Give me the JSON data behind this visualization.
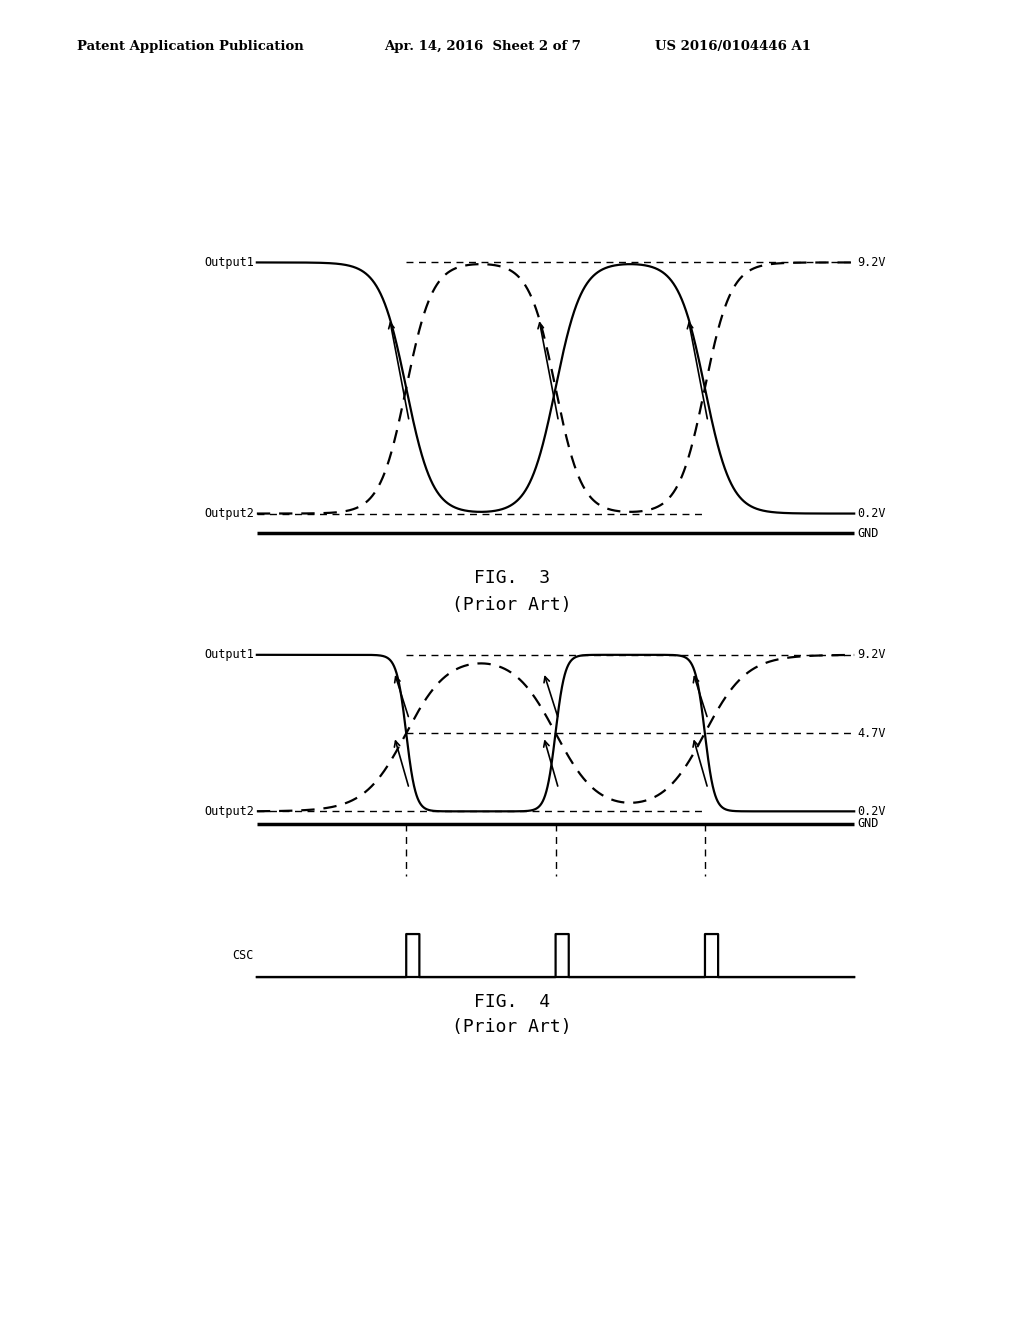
{
  "header_left": "Patent Application Publication",
  "header_mid": "Apr. 14, 2016  Sheet 2 of 7",
  "header_right": "US 2016/0104446 A1",
  "fig3_title": "FIG.  3",
  "fig3_subtitle": "(Prior Art)",
  "fig4_title": "FIG.  4",
  "fig4_subtitle": "(Prior Art)",
  "v_high": 9.2,
  "v_mid": 4.7,
  "v_low": 0.2,
  "bg_color": "#ffffff"
}
